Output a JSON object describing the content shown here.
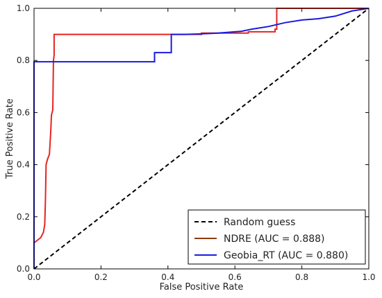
{
  "chart_data": {
    "type": "line",
    "title": "",
    "xlabel": "False Positive Rate",
    "ylabel": "True Positive Rate",
    "xlim": [
      0.0,
      1.0
    ],
    "ylim": [
      0.0,
      1.0
    ],
    "xticks": [
      "0.0",
      "0.2",
      "0.4",
      "0.6",
      "0.8",
      "1.0"
    ],
    "yticks": [
      "0.0",
      "0.2",
      "0.4",
      "0.6",
      "0.8",
      "1.0"
    ],
    "grid": false,
    "legend_position": "bottom-right",
    "series": [
      {
        "name": "Random guess",
        "color": "#000000",
        "style": "dashed",
        "x": [
          0.0,
          1.0
        ],
        "y": [
          0.0,
          1.0
        ]
      },
      {
        "name": "NDRE (AUC = 0.888)",
        "color": "#e8231f",
        "legend_color": "#8b3a0e",
        "style": "solid",
        "x": [
          0.0,
          0.0,
          0.01,
          0.02,
          0.028,
          0.032,
          0.034,
          0.036,
          0.04,
          0.046,
          0.05,
          0.052,
          0.054,
          0.056,
          0.058,
          0.06,
          0.06,
          0.5,
          0.5,
          0.64,
          0.64,
          0.72,
          0.72,
          0.725,
          0.725,
          1.0
        ],
        "y": [
          0.0,
          0.1,
          0.11,
          0.12,
          0.14,
          0.17,
          0.26,
          0.4,
          0.42,
          0.44,
          0.53,
          0.59,
          0.6,
          0.61,
          0.8,
          0.82,
          0.9,
          0.9,
          0.905,
          0.905,
          0.91,
          0.91,
          0.92,
          0.92,
          1.0,
          1.0
        ]
      },
      {
        "name": "Geobia_RT (AUC = 0.880)",
        "color": "#1a1ae0",
        "style": "solid",
        "x": [
          0.0,
          0.0,
          0.36,
          0.36,
          0.41,
          0.41,
          0.45,
          0.5,
          0.55,
          0.6,
          0.62,
          0.65,
          0.7,
          0.75,
          0.8,
          0.85,
          0.9,
          0.95,
          1.0
        ],
        "y": [
          0.0,
          0.795,
          0.795,
          0.83,
          0.83,
          0.9,
          0.9,
          0.902,
          0.905,
          0.91,
          0.912,
          0.92,
          0.93,
          0.945,
          0.955,
          0.96,
          0.97,
          0.99,
          1.0
        ]
      }
    ]
  }
}
